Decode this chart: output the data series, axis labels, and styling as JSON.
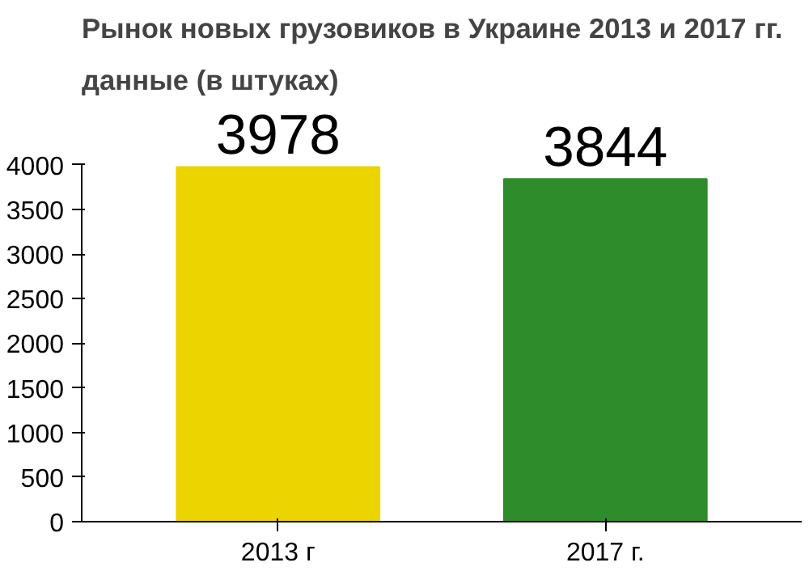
{
  "chart_data": {
    "type": "bar",
    "title": "Рынок новых грузовиков в Украине 2013 и 2017 гг.",
    "subtitle": "данные (в штуках)",
    "categories": [
      "2013 г",
      "2017 г."
    ],
    "values": [
      3978,
      3844
    ],
    "colors": [
      "#ecd400",
      "#2e8c2a"
    ],
    "ylim": [
      0,
      4000
    ],
    "yticks": [
      0,
      500,
      1000,
      1500,
      2000,
      2500,
      3000,
      3500,
      4000
    ],
    "data_labels": true,
    "grid": false
  }
}
